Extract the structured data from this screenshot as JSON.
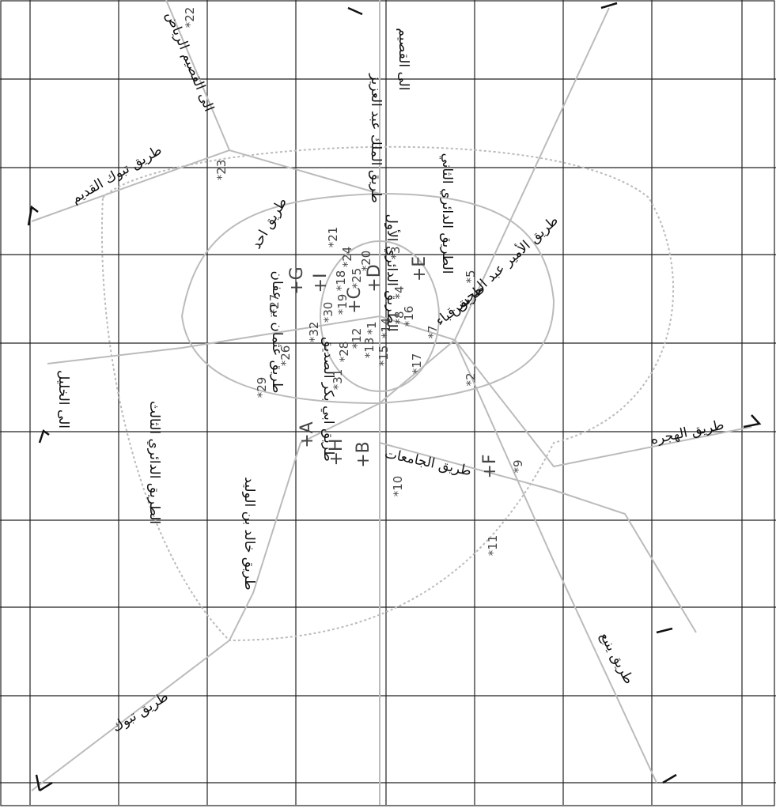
{
  "roads": [
    {
      "label": "طريق تبوك القديم"
    },
    {
      "label": "الى القصيم الرياض"
    },
    {
      "label": "طريق الملك عبد العزيز"
    },
    {
      "label": "الى القصيم"
    },
    {
      "label": "الطريق الدائري الثاني"
    },
    {
      "label": "طريق الأمير عبد المحسن"
    },
    {
      "label": "طريق قباء"
    },
    {
      "label": "الطريق الدائري الأول"
    },
    {
      "label": "طريق عثمان بن عفان"
    },
    {
      "label": "طريق ابي بكر الصديق"
    },
    {
      "label": "طريق الجامعات"
    },
    {
      "label": "طريق الهجره"
    },
    {
      "label": "الى الخليل"
    },
    {
      "label": "الطريق الدائري الثالث"
    },
    {
      "label": "طريق خالد بن الوليد"
    },
    {
      "label": "طريق تبوك"
    },
    {
      "label": "طريق ينبع"
    },
    {
      "label": "طريق احد"
    }
  ],
  "points": [
    "*22",
    "*23",
    "*27",
    "*29",
    "*26",
    "*32",
    "*30",
    "*31",
    "*28",
    "*19",
    "*18",
    "*21",
    "*24",
    "*20",
    "*25",
    "*3",
    "*4",
    "*14",
    "*15",
    "*13",
    "*12",
    "*16",
    "*8",
    "*17",
    "*7",
    "*5",
    "*2",
    "*9",
    "*10",
    "*11",
    "*1"
  ],
  "sites": [
    "+A",
    "+H",
    "+B",
    "+G",
    "+I",
    "+C",
    "+D",
    "+E",
    "+F"
  ]
}
